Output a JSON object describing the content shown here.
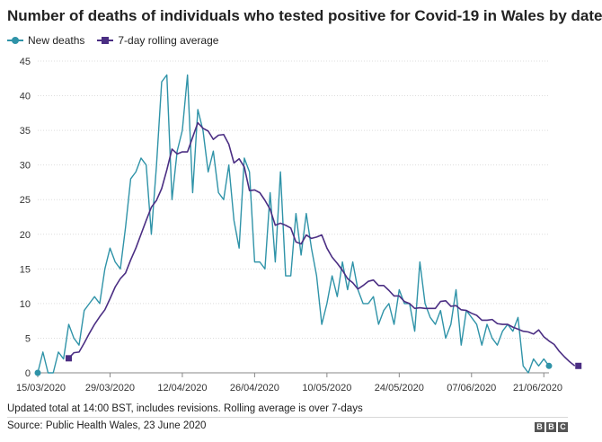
{
  "chart_data": {
    "type": "line",
    "title": "Number of deaths of individuals who tested positive for Covid-19 in Wales by date",
    "xlabel": "",
    "ylabel": "",
    "ylim": [
      0,
      45
    ],
    "y_ticks": [
      0,
      5,
      10,
      15,
      20,
      25,
      30,
      35,
      40,
      45
    ],
    "x_tick_labels": [
      "15/03/2020",
      "29/03/2020",
      "12/04/2020",
      "26/04/2020",
      "10/05/2020",
      "24/05/2020",
      "07/06/2020",
      "21/06/2020"
    ],
    "x_tick_days": [
      0,
      14,
      28,
      42,
      56,
      70,
      84,
      98
    ],
    "x_start": "15/03/2020",
    "grid": true,
    "legend_position": "top-left",
    "series": [
      {
        "name": "New deaths",
        "color": "#2f93a8",
        "marker": "circle",
        "start_day": 0,
        "values": [
          0,
          3,
          0,
          0,
          3,
          2,
          7,
          5,
          4,
          9,
          10,
          11,
          10,
          15,
          18,
          16,
          15,
          21,
          28,
          29,
          31,
          30,
          20,
          30,
          42,
          43,
          25,
          32,
          35,
          43,
          26,
          38,
          35,
          29,
          32,
          26,
          25,
          30,
          22,
          18,
          31,
          29,
          16,
          16,
          15,
          26,
          16,
          29,
          14,
          14,
          23,
          17,
          23,
          18,
          14,
          7,
          10,
          14,
          11,
          16,
          12,
          16,
          12,
          10,
          10,
          11,
          7,
          9,
          10,
          7,
          12,
          10,
          10,
          6,
          16,
          10,
          8,
          7,
          9,
          5,
          7,
          12,
          4,
          9,
          8,
          7,
          4,
          7,
          5,
          4,
          6,
          7,
          6,
          8,
          1,
          0,
          2,
          1,
          2,
          1
        ]
      },
      {
        "name": "7-day rolling average",
        "color": "#4b2e83",
        "marker": "square",
        "start_day": 6,
        "values": [
          2.1,
          2.9,
          3.0,
          4.3,
          5.7,
          7.0,
          8.1,
          9.1,
          10.7,
          12.4,
          13.6,
          14.4,
          16.3,
          18.0,
          20.0,
          22.0,
          23.9,
          24.9,
          26.6,
          29.3,
          32.3,
          31.6,
          31.9,
          31.9,
          34.0,
          36.1,
          35.3,
          34.9,
          33.7,
          34.3,
          34.4,
          33.0,
          30.3,
          30.9,
          29.7,
          26.3,
          26.4,
          26.0,
          24.9,
          23.6,
          21.3,
          21.6,
          21.3,
          20.9,
          18.9,
          18.6,
          19.9,
          19.4,
          19.6,
          19.9,
          18.0,
          16.7,
          15.8,
          14.8,
          13.6,
          13.0,
          12.1,
          12.6,
          13.2,
          13.4,
          12.6,
          12.6,
          11.9,
          11.1,
          11.1,
          10.3,
          10.0,
          9.3,
          9.4,
          9.3,
          9.3,
          9.3,
          10.3,
          10.4,
          9.6,
          9.7,
          9.1,
          9.0,
          8.6,
          8.3,
          7.6,
          7.6,
          7.7,
          7.1,
          7.0,
          7.0,
          6.6,
          6.3,
          6.0,
          5.9,
          5.6,
          6.2,
          5.2,
          4.6,
          4.1,
          3.1,
          2.3,
          1.6,
          1.0
        ]
      }
    ],
    "axis_color": "#888888",
    "grid_color": "#dddddd"
  },
  "footnote": "Updated total at 14:00 BST, includes revisions. Rolling average is over 7-days",
  "source": "Source: Public Health Wales, 23 June 2020",
  "logo": [
    "B",
    "B",
    "C"
  ]
}
